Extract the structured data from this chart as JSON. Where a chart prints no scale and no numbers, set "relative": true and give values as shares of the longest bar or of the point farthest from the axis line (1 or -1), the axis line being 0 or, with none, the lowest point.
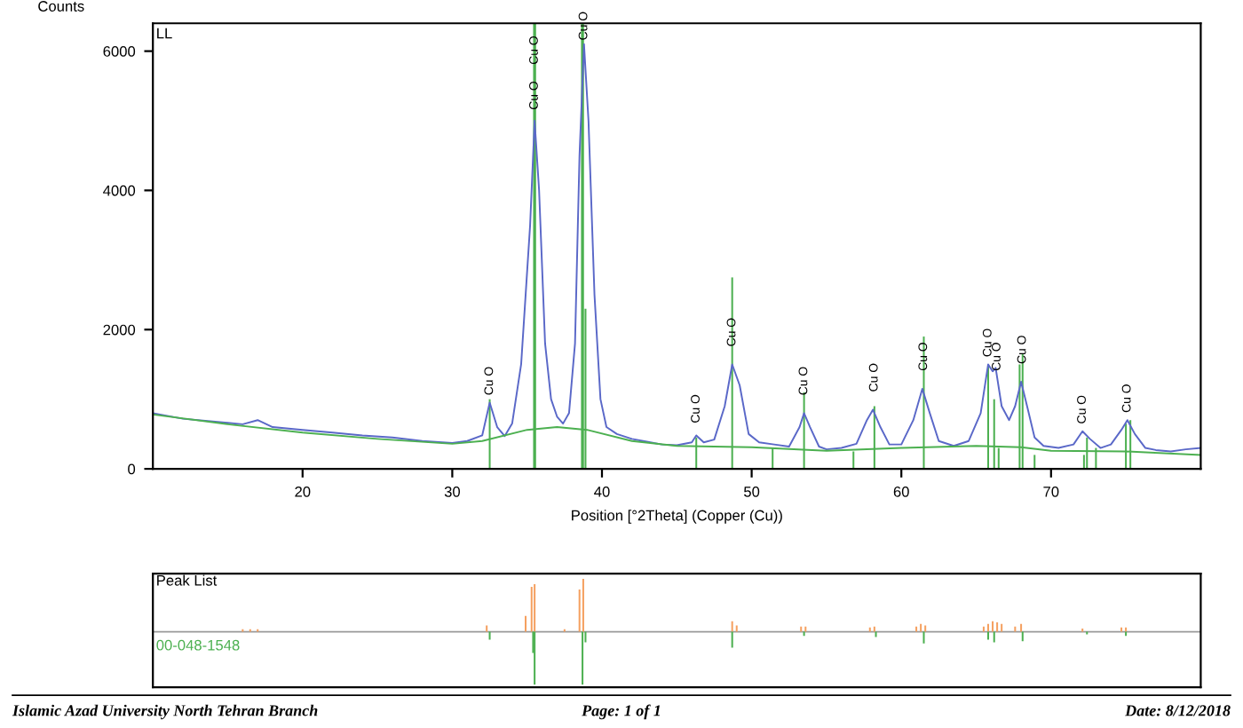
{
  "chart_data": [
    {
      "type": "line",
      "title": "LL",
      "xlabel": "Position [°2Theta] (Copper (Cu))",
      "ylabel": "Counts",
      "xlim": [
        10,
        80
      ],
      "ylim": [
        0,
        6400
      ],
      "xticks": [
        20,
        30,
        40,
        50,
        60,
        70
      ],
      "yticks": [
        0,
        2000,
        4000,
        6000
      ],
      "grid": false,
      "legend": false,
      "ref_lines": [
        {
          "axis": "x",
          "value": 35.5,
          "color": "#4cb050"
        },
        {
          "axis": "x",
          "value": 38.7,
          "color": "#4cb050"
        }
      ],
      "series": [
        {
          "type": "line",
          "color": "#5a68c8",
          "x": [
            10,
            12,
            14,
            16,
            17,
            18,
            20,
            22,
            24,
            26,
            28,
            30,
            31,
            32,
            32.5,
            33,
            33.5,
            34,
            34.6,
            35.2,
            35.5,
            35.8,
            36.2,
            36.6,
            37,
            37.4,
            37.8,
            38.2,
            38.5,
            38.8,
            39.1,
            39.5,
            39.9,
            40.3,
            41,
            42,
            43,
            44,
            45,
            46,
            46.3,
            46.8,
            47.5,
            48.2,
            48.7,
            49.2,
            49.8,
            50.5,
            51.5,
            52.5,
            53.2,
            53.5,
            53.9,
            54.5,
            55,
            56,
            57,
            57.7,
            58.1,
            58.6,
            59.2,
            60,
            60.8,
            61.4,
            61.9,
            62.5,
            63.5,
            64.5,
            65.3,
            65.8,
            66.1,
            66.3,
            66.7,
            67.2,
            67.6,
            68,
            68.4,
            68.9,
            69.5,
            70.5,
            71.5,
            72.1,
            72.6,
            73.3,
            74,
            74.7,
            75.1,
            75.6,
            76.3,
            77,
            78,
            79,
            80
          ],
          "values": [
            800,
            720,
            680,
            640,
            700,
            600,
            560,
            520,
            480,
            450,
            400,
            370,
            400,
            480,
            950,
            600,
            470,
            650,
            1500,
            3500,
            5000,
            4000,
            1800,
            1000,
            750,
            650,
            800,
            1800,
            4500,
            6100,
            5000,
            2500,
            1000,
            600,
            500,
            430,
            390,
            350,
            340,
            380,
            480,
            380,
            420,
            900,
            1500,
            1200,
            500,
            380,
            350,
            320,
            600,
            800,
            600,
            320,
            280,
            300,
            360,
            700,
            850,
            600,
            350,
            350,
            700,
            1150,
            800,
            400,
            330,
            400,
            800,
            1500,
            1400,
            1450,
            900,
            700,
            900,
            1250,
            900,
            450,
            330,
            300,
            350,
            540,
            430,
            300,
            350,
            560,
            700,
            500,
            300,
            270,
            250,
            280,
            300
          ]
        },
        {
          "type": "line",
          "color": "#4cb050",
          "x": [
            10,
            15,
            20,
            25,
            30,
            32,
            35,
            37,
            39,
            42,
            45,
            50,
            55,
            60,
            65,
            68,
            70,
            75,
            80
          ],
          "values": [
            780,
            640,
            520,
            430,
            360,
            400,
            560,
            600,
            560,
            400,
            330,
            310,
            260,
            300,
            330,
            310,
            260,
            250,
            200
          ]
        },
        {
          "type": "bar",
          "color": "#4cb050",
          "x": [
            32.5,
            38.9,
            46.3,
            48.7,
            51.4,
            53.5,
            56.8,
            58.2,
            61.5,
            65.8,
            66.2,
            66.5,
            67.9,
            68.1,
            68.9,
            72.2,
            72.4,
            73,
            75,
            75.3
          ],
          "values": [
            1000,
            2300,
            450,
            2750,
            300,
            1100,
            250,
            900,
            1900,
            1500,
            1000,
            300,
            1500,
            1650,
            200,
            200,
            450,
            300,
            650,
            700
          ]
        }
      ],
      "annotations": [
        {
          "text": "Cu O",
          "x": 32.5,
          "y": 950
        },
        {
          "text": "Cu O",
          "x": 35.5,
          "y": 5050
        },
        {
          "text": "Cu O",
          "x": 35.5,
          "y": 5700
        },
        {
          "text": "Cu O",
          "x": 38.8,
          "y": 6050
        },
        {
          "text": "Cu O",
          "x": 46.3,
          "y": 550
        },
        {
          "text": "Cu O",
          "x": 48.7,
          "y": 1650
        },
        {
          "text": "Cu O",
          "x": 53.5,
          "y": 950
        },
        {
          "text": "Cu O",
          "x": 58.2,
          "y": 1000
        },
        {
          "text": "Cu O",
          "x": 61.5,
          "y": 1300
        },
        {
          "text": "Cu O",
          "x": 65.8,
          "y": 1500
        },
        {
          "text": "Cu O",
          "x": 66.4,
          "y": 1300
        },
        {
          "text": "Cu O",
          "x": 68.1,
          "y": 1400
        },
        {
          "text": "Cu O",
          "x": 72.1,
          "y": 540
        },
        {
          "text": "Cu O",
          "x": 75.1,
          "y": 700
        }
      ]
    },
    {
      "type": "bar",
      "title": "Peak List",
      "relative": true,
      "xlim": [
        10,
        80
      ],
      "tick_labels": false,
      "grid": false,
      "legend": false,
      "series": [
        {
          "color": "#f5a060",
          "x": [
            16,
            16.5,
            17,
            32.3,
            34.9,
            35.3,
            35.5,
            37.5,
            38.5,
            38.75,
            48.7,
            49.0,
            53.3,
            53.6,
            57.9,
            58.2,
            61.0,
            61.3,
            61.6,
            65.5,
            65.8,
            66.1,
            66.4,
            66.7,
            67.6,
            68.0,
            72.1,
            74.7,
            75.0
          ],
          "values": [
            0.05,
            0.05,
            0.05,
            0.12,
            0.3,
            0.85,
            0.9,
            0.05,
            0.8,
            1.0,
            0.2,
            0.12,
            0.1,
            0.1,
            0.08,
            0.1,
            0.1,
            0.15,
            0.12,
            0.1,
            0.15,
            0.2,
            0.18,
            0.15,
            0.1,
            0.15,
            0.06,
            0.08,
            0.08
          ]
        },
        {
          "name": "00-048-1548",
          "color": "#4cb050",
          "x": [
            32.5,
            35.4,
            35.5,
            38.7,
            38.9,
            48.7,
            53.5,
            58.3,
            61.5,
            65.8,
            66.2,
            68.1,
            72.4,
            75.0
          ],
          "values": [
            -0.15,
            -0.4,
            -1.0,
            -1.0,
            -0.2,
            -0.3,
            -0.08,
            -0.1,
            -0.22,
            -0.15,
            -0.2,
            -0.18,
            -0.05,
            -0.08
          ]
        }
      ],
      "annotations": [
        "Islamic Azad University North Tehran Branch",
        "Page: 1 of 1",
        "Date: 8/12/2018"
      ]
    }
  ]
}
